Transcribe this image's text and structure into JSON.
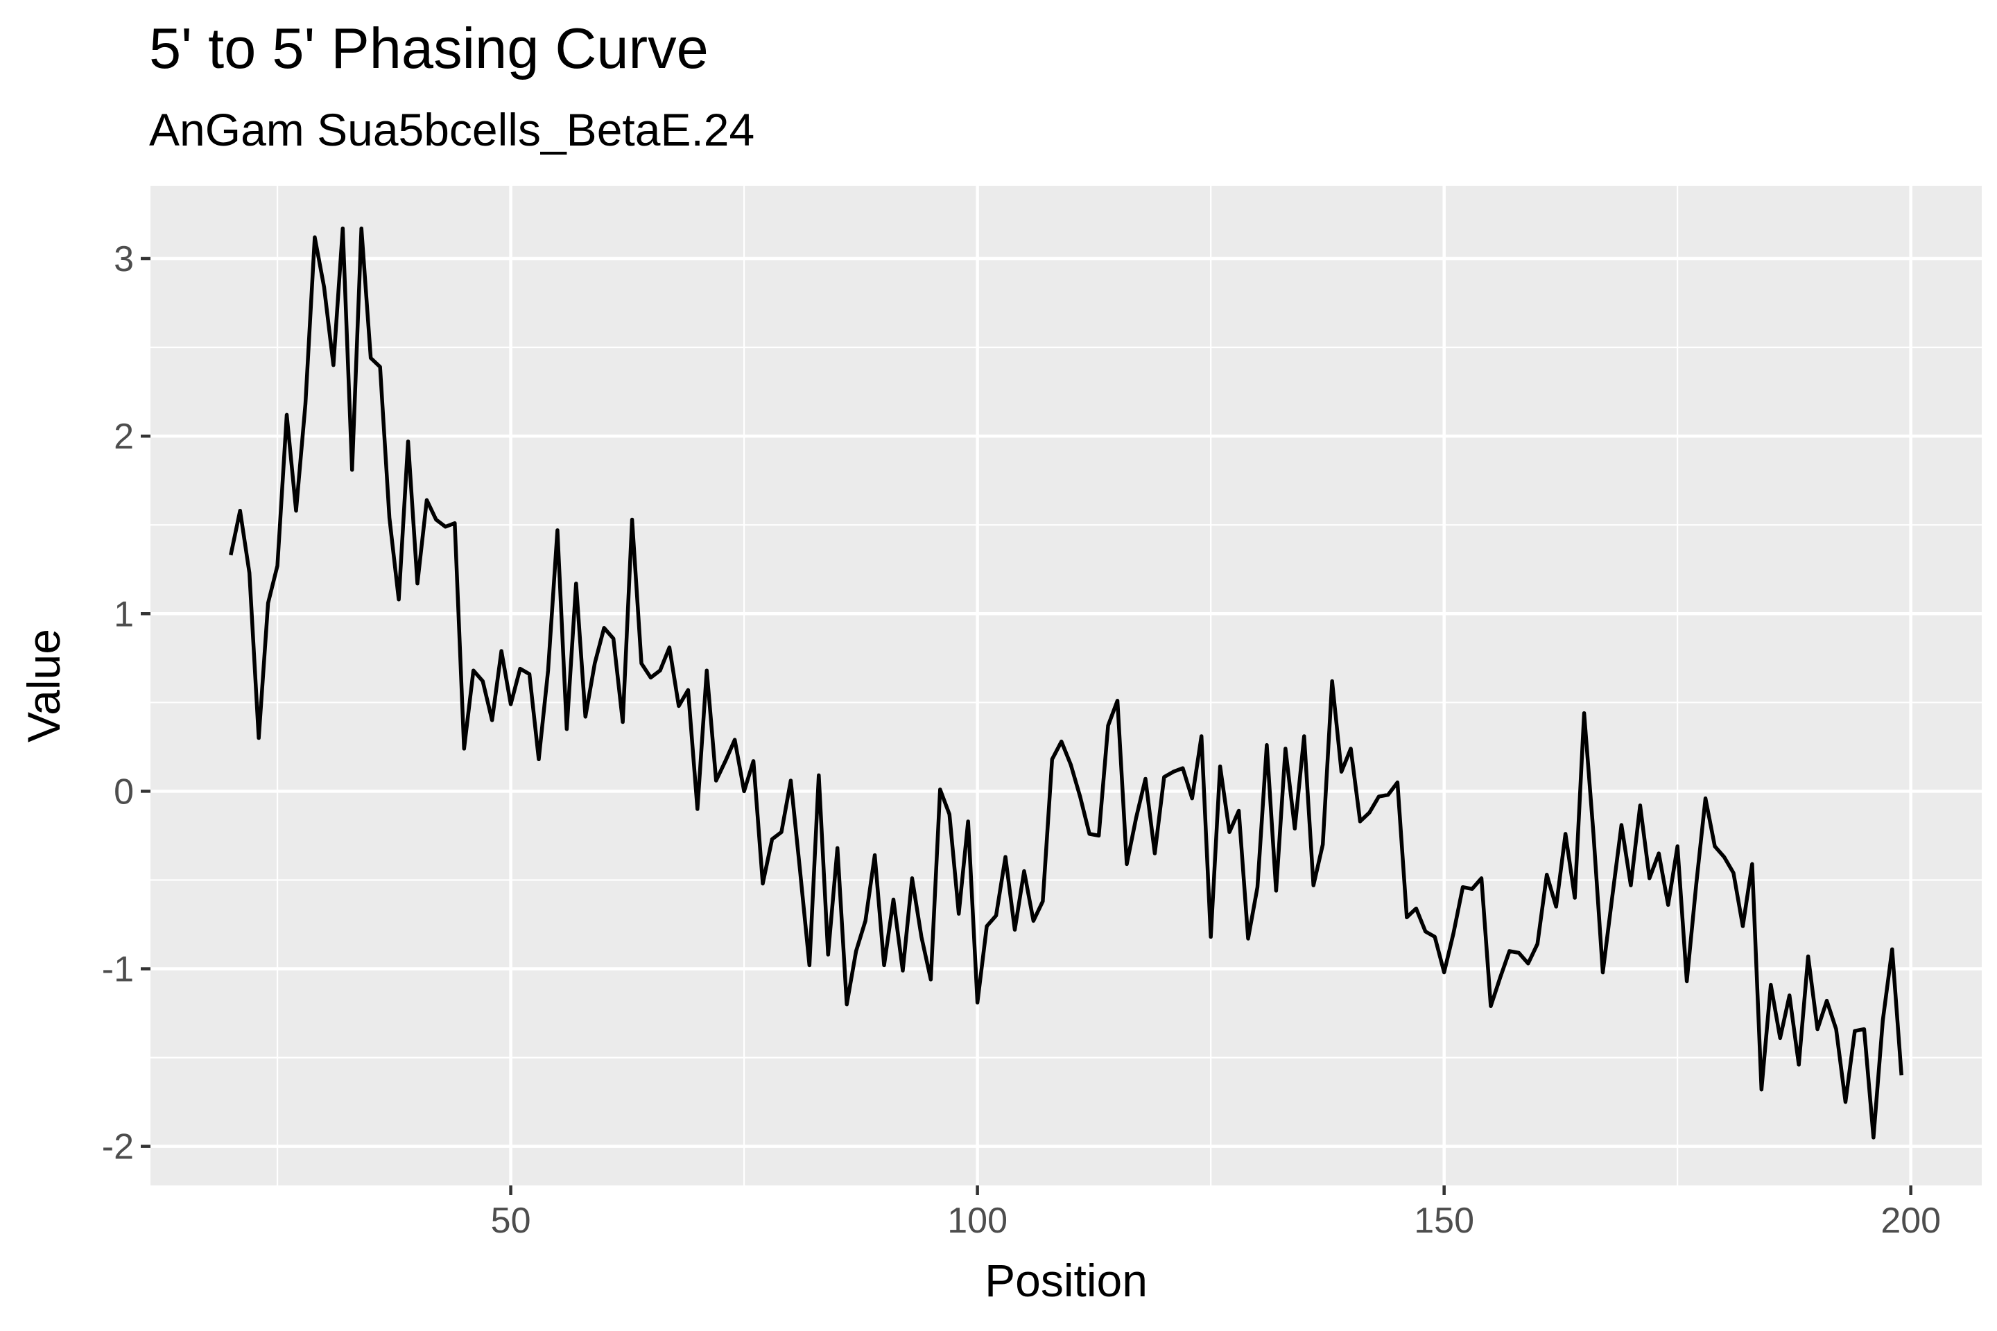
{
  "chart_data": {
    "type": "line",
    "title": "5' to 5' Phasing Curve",
    "subtitle": "AnGam Sua5bcells_BetaE.24",
    "xlabel": "Position",
    "ylabel": "Value",
    "xlim": [
      11.4,
      207.6
    ],
    "ylim": [
      -2.22,
      3.41
    ],
    "x_major_ticks": [
      50,
      100,
      150,
      200
    ],
    "x_tick_labels": [
      "50",
      "100",
      "150",
      "200"
    ],
    "x_minor_ticks": [
      25,
      75,
      125,
      175
    ],
    "y_major_ticks": [
      -2,
      -1,
      0,
      1,
      2,
      3
    ],
    "y_tick_labels": [
      "-2",
      "-1",
      "0",
      "1",
      "2",
      "3"
    ],
    "y_minor_ticks": [
      -1.5,
      -0.5,
      0.5,
      1.5,
      2.5
    ],
    "grid": true,
    "legend": "none",
    "series": [
      {
        "name": "Value",
        "x_start": 20,
        "x_step": 1,
        "values": [
          1.33,
          1.58,
          1.23,
          0.3,
          1.06,
          1.27,
          2.12,
          1.58,
          2.18,
          3.12,
          2.84,
          2.4,
          3.17,
          1.81,
          3.17,
          2.44,
          2.39,
          1.54,
          1.08,
          1.97,
          1.17,
          1.64,
          1.53,
          1.49,
          1.51,
          0.24,
          0.68,
          0.62,
          0.4,
          0.79,
          0.49,
          0.69,
          0.66,
          0.18,
          0.68,
          1.47,
          0.35,
          1.17,
          0.42,
          0.72,
          0.92,
          0.86,
          0.39,
          1.53,
          0.72,
          0.64,
          0.68,
          0.81,
          0.48,
          0.57,
          -0.1,
          0.68,
          0.06,
          0.17,
          0.29,
          0.0,
          0.17,
          -0.52,
          -0.27,
          -0.23,
          0.06,
          -0.45,
          -0.98,
          0.09,
          -0.92,
          -0.32,
          -1.2,
          -0.9,
          -0.73,
          -0.36,
          -0.98,
          -0.61,
          -1.01,
          -0.49,
          -0.82,
          -1.06,
          0.01,
          -0.13,
          -0.69,
          -0.17,
          -1.19,
          -0.76,
          -0.7,
          -0.37,
          -0.78,
          -0.45,
          -0.73,
          -0.62,
          0.18,
          0.28,
          0.15,
          -0.03,
          -0.24,
          -0.25,
          0.37,
          0.51,
          -0.41,
          -0.15,
          0.07,
          -0.35,
          0.08,
          0.11,
          0.13,
          -0.04,
          0.31,
          -0.82,
          0.14,
          -0.23,
          -0.11,
          -0.83,
          -0.54,
          0.26,
          -0.56,
          0.24,
          -0.21,
          0.31,
          -0.53,
          -0.3,
          0.62,
          0.11,
          0.24,
          -0.17,
          -0.12,
          -0.03,
          -0.02,
          0.05,
          -0.71,
          -0.66,
          -0.79,
          -0.82,
          -1.02,
          -0.8,
          -0.54,
          -0.55,
          -0.49,
          -1.21,
          -1.05,
          -0.9,
          -0.91,
          -0.97,
          -0.86,
          -0.47,
          -0.65,
          -0.24,
          -0.6,
          0.44,
          -0.24,
          -1.02,
          -0.6,
          -0.19,
          -0.53,
          -0.08,
          -0.49,
          -0.35,
          -0.64,
          -0.31,
          -1.07,
          -0.53,
          -0.04,
          -0.31,
          -0.37,
          -0.46,
          -0.76,
          -0.41,
          -1.68,
          -1.09,
          -1.39,
          -1.15,
          -1.54,
          -0.93,
          -1.34,
          -1.18,
          -1.34,
          -1.75,
          -1.35,
          -1.34,
          -1.95,
          -1.29,
          -0.89,
          -1.6
        ]
      }
    ]
  }
}
